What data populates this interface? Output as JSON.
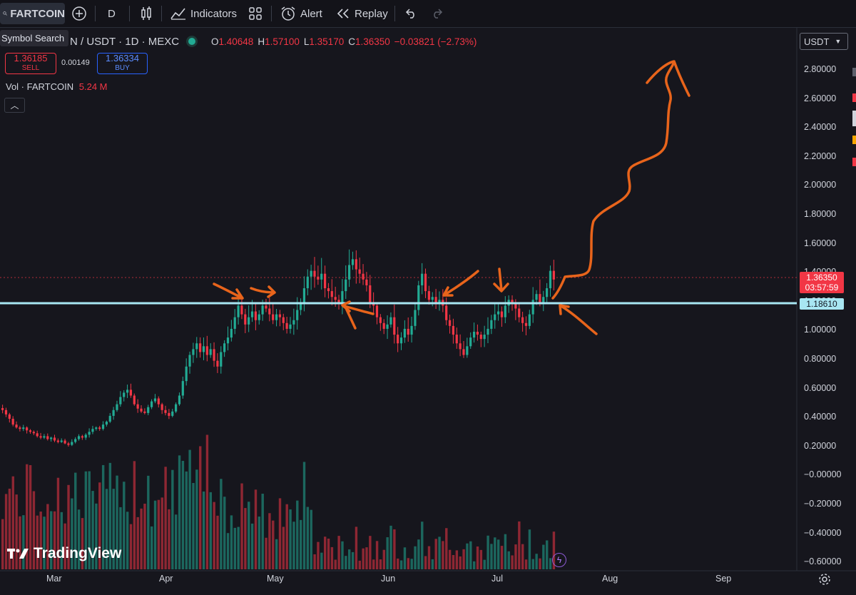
{
  "toolbar": {
    "symbol": "FARTCOIN",
    "interval": "D",
    "indicators": "Indicators",
    "alert": "Alert",
    "replay": "Replay"
  },
  "tooltip": "Symbol Search",
  "legend": {
    "title": "N / USDT · 1D · MEXC",
    "o_key": "O",
    "o": "1.40648",
    "h_key": "H",
    "h": "1.57100",
    "l_key": "L",
    "l": "1.35170",
    "c_key": "C",
    "c": "1.36350",
    "change": "−0.03821 (−2.73%)"
  },
  "trade": {
    "sell_price": "1.36185",
    "sell_label": "SELL",
    "spread": "0.00149",
    "buy_price": "1.36334",
    "buy_label": "BUY"
  },
  "volume_legend": {
    "label": "Vol · FARTCOIN",
    "value": "5.24 M"
  },
  "currency": "USDT",
  "price_axis": [
    "2.80000",
    "2.60000",
    "2.40000",
    "2.20000",
    "2.00000",
    "1.80000",
    "1.60000",
    "1.40000",
    "1.20000",
    "1.00000",
    "0.80000",
    "0.60000",
    "0.40000",
    "0.20000",
    "−0.00000",
    "−0.20000",
    "−0.40000",
    "−0.60000"
  ],
  "current_price": {
    "price": "1.36350",
    "countdown": "03:57:59"
  },
  "level_tag": "1.18610",
  "time_axis": [
    "Mar",
    "Apr",
    "May",
    "Jun",
    "Jul",
    "Aug",
    "Sep"
  ],
  "logo": "TradingView",
  "colors": {
    "up": "#22ab94",
    "down": "#f23645",
    "level": "#a8e6f2",
    "annotation": "#e8641b"
  },
  "chart_data": {
    "type": "candlestick",
    "ohlc_last": {
      "open": 1.40648,
      "high": 1.571,
      "low": 1.3517,
      "close": 1.3635
    },
    "horizontal_level": 1.1861,
    "ylim": [
      -0.65,
      2.9
    ],
    "close_series": [
      0.46,
      0.43,
      0.4,
      0.36,
      0.34,
      0.33,
      0.34,
      0.32,
      0.31,
      0.3,
      0.28,
      0.27,
      0.28,
      0.26,
      0.27,
      0.25,
      0.24,
      0.25,
      0.23,
      0.22,
      0.24,
      0.26,
      0.28,
      0.27,
      0.29,
      0.31,
      0.33,
      0.34,
      0.33,
      0.36,
      0.38,
      0.42,
      0.46,
      0.5,
      0.55,
      0.58,
      0.6,
      0.56,
      0.5,
      0.47,
      0.45,
      0.44,
      0.48,
      0.52,
      0.54,
      0.5,
      0.46,
      0.44,
      0.42,
      0.45,
      0.5,
      0.56,
      0.66,
      0.76,
      0.84,
      0.88,
      0.92,
      0.86,
      0.9,
      0.84,
      0.88,
      0.8,
      0.76,
      0.86,
      0.92,
      0.96,
      1.02,
      1.1,
      1.18,
      1.12,
      1.05,
      1.1,
      1.14,
      1.08,
      1.12,
      1.18,
      1.16,
      1.12,
      1.08,
      1.12,
      1.1,
      1.06,
      1.02,
      1.05,
      1.08,
      1.15,
      1.2,
      1.3,
      1.38,
      1.42,
      1.38,
      1.36,
      1.4,
      1.3,
      1.28,
      1.24,
      1.22,
      1.2,
      1.28,
      1.36,
      1.46,
      1.5,
      1.43,
      1.4,
      1.36,
      1.32,
      1.2,
      1.18,
      1.1,
      1.06,
      1.02,
      1.05,
      1.1,
      0.98,
      0.92,
      0.96,
      1.02,
      0.98,
      1.04,
      1.15,
      1.32,
      1.4,
      1.28,
      1.22,
      1.24,
      1.2,
      1.22,
      1.18,
      1.08,
      1.04,
      0.98,
      0.92,
      0.88,
      0.84,
      0.9,
      0.96,
      1.0,
      0.98,
      0.95,
      0.98,
      1.02,
      1.08,
      1.12,
      1.14,
      1.1,
      1.18,
      1.22,
      1.2,
      1.16,
      1.1,
      1.06,
      1.04,
      1.12,
      1.22,
      1.26,
      1.2,
      1.24,
      1.3,
      1.42,
      1.36
    ]
  }
}
